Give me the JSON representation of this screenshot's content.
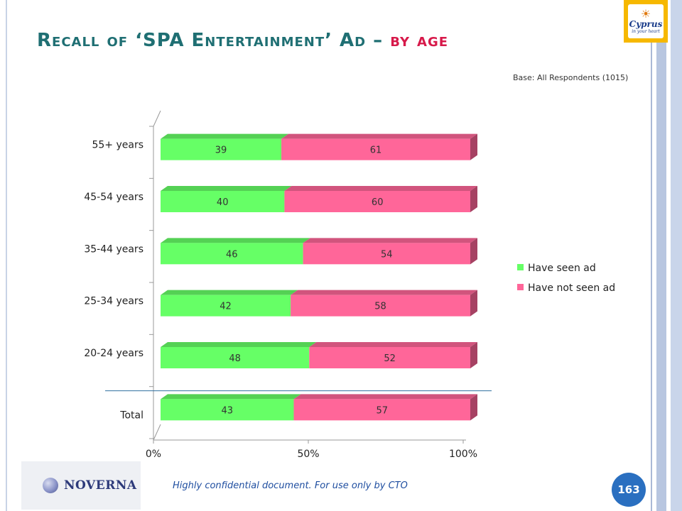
{
  "slide": {
    "title_main": "Recall of ‘SPA Entertainment’ Ad –",
    "title_accent": "by age",
    "base_note": "Base: All Respondents (1015)",
    "footer_text": "Highly confidential document. For use only by CTO",
    "page_number": "163",
    "logo_word": "Cyprus",
    "logo_tagline": "in your heart",
    "company_logo": "NOVERNA"
  },
  "chart_data": {
    "type": "bar",
    "orientation": "horizontal",
    "stacked": "percent",
    "categories": [
      "55+ years",
      "45-54 years",
      "35-44 years",
      "25-34 years",
      "20-24 years",
      "Total"
    ],
    "series": [
      {
        "name": "Have seen ad",
        "color": "#66ff66",
        "values": [
          39,
          40,
          46,
          42,
          48,
          43
        ]
      },
      {
        "name": "Have not seen ad",
        "color": "#ff6699",
        "values": [
          61,
          60,
          54,
          58,
          52,
          57
        ]
      }
    ],
    "x_ticks": [
      "0%",
      "50%",
      "100%"
    ],
    "xlim": [
      0,
      100
    ],
    "legend_position": "right",
    "grid": false,
    "three_d": true
  }
}
